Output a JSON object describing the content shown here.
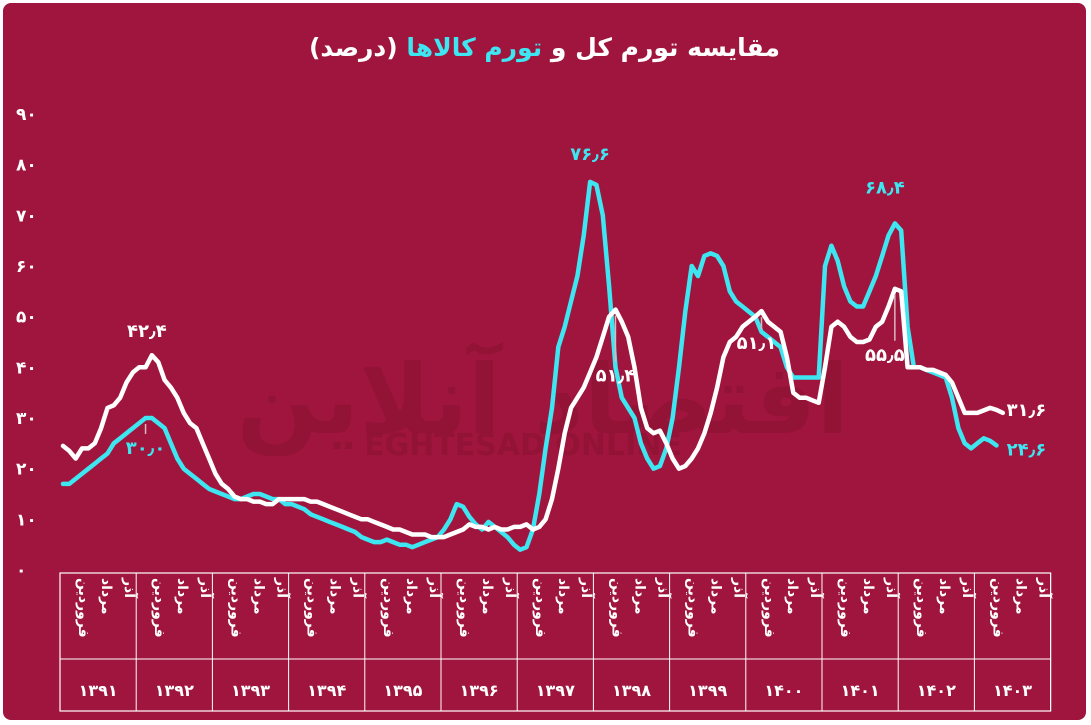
{
  "title": {
    "before": "مقایسه تورم کل و",
    "highlight": "تورم کالاها",
    "after": "(درصد)"
  },
  "watermark": {
    "main": "اقتصاد آنلاین",
    "sub": "EGHTESAD ONLINE"
  },
  "colors": {
    "background": "#a0153d",
    "total_inflation": "#ffffff",
    "goods_inflation": "#3de6f0",
    "grid": "#ffffff"
  },
  "chart_data": {
    "type": "line",
    "title": "مقایسه تورم کل و تورم کالاها (درصد)",
    "ylim": [
      0,
      90
    ],
    "yticks": [
      "۰",
      "۱۰",
      "۲۰",
      "۳۰",
      "۴۰",
      "۵۰",
      "۶۰",
      "۷۰",
      "۸۰",
      "۹۰"
    ],
    "months_per_year": 12,
    "month_labels": [
      "فروردین",
      "مرداد",
      "آذر"
    ],
    "years": [
      "۱۳۹۱",
      "۱۳۹۲",
      "۱۳۹۳",
      "۱۳۹۴",
      "۱۳۹۵",
      "۱۳۹۶",
      "۱۳۹۷",
      "۱۳۹۸",
      "۱۳۹۹",
      "۱۴۰۰",
      "۱۴۰۱",
      "۱۴۰۲",
      "۱۴۰۳"
    ],
    "series": [
      {
        "key": "total",
        "color": "#ffffff",
        "values": [
          24.5,
          23.5,
          22,
          24,
          24,
          25,
          28,
          32,
          32.5,
          34,
          37,
          39,
          40,
          40,
          42.4,
          41,
          37.5,
          36,
          34,
          31,
          29,
          28,
          25,
          22,
          19,
          17,
          16,
          14.5,
          14,
          14,
          13.5,
          13.5,
          13,
          13,
          14,
          14,
          14,
          14,
          14,
          13.5,
          13.5,
          13,
          12.5,
          12,
          11.5,
          11,
          10.5,
          10,
          10,
          9.5,
          9,
          8.5,
          8,
          8,
          7.5,
          7,
          7,
          7,
          6.5,
          6.5,
          6.5,
          7,
          7.5,
          8,
          9,
          8.5,
          8.5,
          8,
          8.5,
          8,
          8,
          8.5,
          8.5,
          9,
          8,
          8.5,
          10,
          14,
          20,
          27,
          32,
          34,
          36,
          39,
          42,
          46,
          50,
          51.4,
          49,
          46,
          40,
          32,
          28,
          27,
          27.5,
          25,
          22,
          20,
          20.5,
          22,
          24,
          27,
          31,
          36,
          42,
          45,
          46,
          48,
          49,
          50,
          51.1,
          49,
          48,
          47,
          42,
          35,
          34,
          34,
          33.5,
          33,
          40,
          48,
          49,
          48,
          46,
          45,
          45,
          45.5,
          48,
          49,
          52,
          55.5,
          55,
          40,
          40,
          40,
          39.5,
          39.5,
          39,
          38.5,
          37,
          34,
          31,
          31,
          31,
          31.5,
          32,
          31.6,
          31
        ]
      },
      {
        "key": "goods",
        "color": "#3de6f0",
        "values": [
          17,
          17,
          18,
          19,
          20,
          21,
          22,
          23,
          25,
          26,
          27,
          28,
          29,
          30.0,
          30,
          29,
          28,
          25,
          22,
          20,
          19,
          18,
          17,
          16,
          15.5,
          15,
          14.5,
          14,
          14,
          14.5,
          15,
          15,
          14.5,
          14,
          14,
          13,
          13,
          12.5,
          12,
          11,
          10.5,
          10,
          9.5,
          9,
          8.5,
          8,
          7.5,
          6.5,
          6,
          5.5,
          5.5,
          6,
          5.5,
          5,
          5,
          4.5,
          5,
          5.5,
          6,
          6.5,
          8,
          10,
          13,
          12.5,
          10.5,
          9,
          8,
          9.5,
          8.5,
          7.5,
          6.5,
          5,
          4,
          4.5,
          8,
          15,
          24,
          32,
          44,
          48,
          53,
          58,
          66,
          76.6,
          76,
          70,
          56,
          40,
          34,
          32,
          30,
          25,
          22,
          20,
          20.5,
          24,
          30,
          40,
          51,
          60,
          58,
          62,
          62.5,
          62,
          60,
          55,
          53,
          52,
          51,
          50,
          47,
          46,
          45,
          44,
          40,
          38,
          38,
          38,
          38,
          38,
          60,
          64,
          61,
          56,
          53,
          52,
          52,
          55,
          58,
          62,
          66,
          68.4,
          67,
          48,
          40,
          40,
          39.5,
          39,
          38.5,
          38,
          34,
          28,
          25,
          24,
          25,
          26,
          25.5,
          24.6
        ]
      }
    ],
    "annotations": [
      {
        "series": "total",
        "index": 14,
        "label": "۴۲٫۴"
      },
      {
        "series": "goods",
        "index": 13,
        "label": "۳۰٫۰"
      },
      {
        "series": "goods",
        "index": 83,
        "label": "۷۶٫۶"
      },
      {
        "series": "total",
        "index": 87,
        "label": "۵۱٫۴"
      },
      {
        "series": "total",
        "index": 110,
        "label": "۵۱٫۱"
      },
      {
        "series": "goods",
        "index": 131,
        "label": "۶۸٫۴"
      },
      {
        "series": "total",
        "index": 131,
        "label": "۵۵٫۵"
      },
      {
        "series": "total",
        "index": 147,
        "label": "۳۱٫۶"
      },
      {
        "series": "goods",
        "index": 147,
        "label": "۲۴٫۶"
      }
    ]
  }
}
